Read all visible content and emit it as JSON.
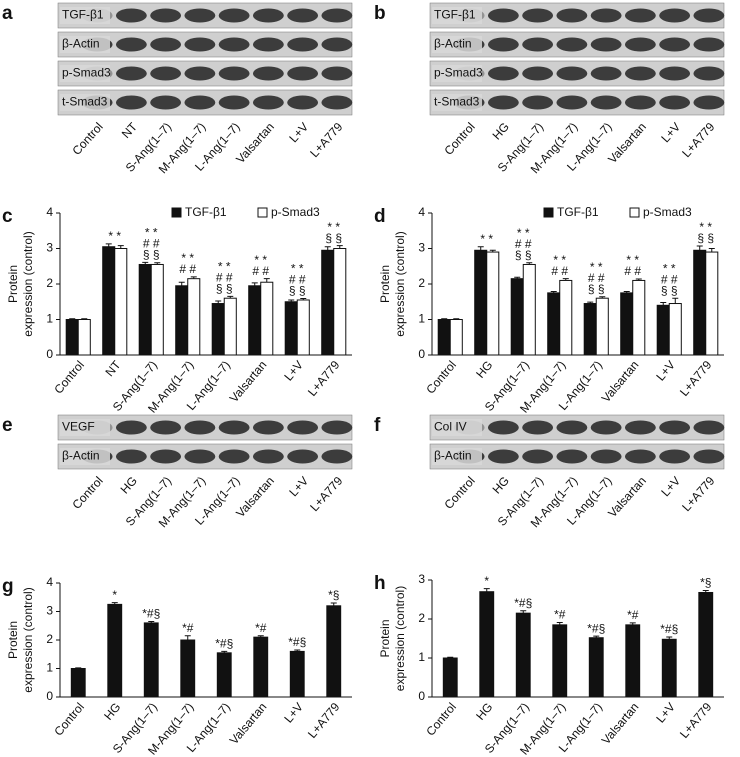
{
  "blots": [
    {
      "letter": "a",
      "rows": [
        "TGF-β1",
        "β-Actin",
        "p-Smad3",
        "t-Smad3"
      ],
      "lanes": [
        "Control",
        "NT",
        "S-Ang(1–7)",
        "M-Ang(1–7)",
        "L-Ang(1–7)",
        "Valsartan",
        "L+V",
        "L+A779"
      ]
    },
    {
      "letter": "b",
      "rows": [
        "TGF-β1",
        "β-Actin",
        "p-Smad3",
        "t-Smad3"
      ],
      "lanes": [
        "Control",
        "HG",
        "S-Ang(1–7)",
        "M-Ang(1–7)",
        "L-Ang(1–7)",
        "Valsartan",
        "L+V",
        "L+A779"
      ]
    },
    {
      "letter": "e",
      "rows": [
        "VEGF",
        "β-Actin"
      ],
      "lanes": [
        "Control",
        "HG",
        "S-Ang(1–7)",
        "M-Ang(1–7)",
        "L-Ang(1–7)",
        "Valsartan",
        "L+V",
        "L+A779"
      ]
    },
    {
      "letter": "f",
      "rows": [
        "Col IV",
        "β-Actin"
      ],
      "lanes": [
        "Control",
        "HG",
        "S-Ang(1–7)",
        "M-Ang(1–7)",
        "L-Ang(1–7)",
        "Valsartan",
        "L+V",
        "L+A779"
      ]
    }
  ],
  "chart_data": [
    {
      "type": "bar",
      "letter": "c",
      "y_label": [
        "Protein",
        "expression (control)"
      ],
      "categories": [
        "Control",
        "NT",
        "S-Ang(1–7)",
        "M-Ang(1–7)",
        "L-Ang(1–7)",
        "Valsartan",
        "L+V",
        "L+A779"
      ],
      "series": [
        {
          "name": "TGF-β1",
          "color": "#111111",
          "values": [
            1,
            3.05,
            2.55,
            1.95,
            1.45,
            1.95,
            1.5,
            2.95
          ],
          "errors": [
            0.02,
            0.08,
            0.06,
            0.1,
            0.07,
            0.08,
            0.05,
            0.1
          ]
        },
        {
          "name": "p-Smad3",
          "color": "#ffffff",
          "values": [
            1,
            3.0,
            2.55,
            2.15,
            1.6,
            2.05,
            1.55,
            3.0
          ],
          "errors": [
            0.02,
            0.08,
            0.05,
            0.05,
            0.05,
            0.1,
            0.04,
            0.08
          ]
        }
      ],
      "annotations": [
        [],
        [
          "* *"
        ],
        [
          "* *",
          "# #",
          "§ §"
        ],
        [
          "* *",
          "# #"
        ],
        [
          "* *",
          "# #",
          "§ §"
        ],
        [
          "* *",
          "# #"
        ],
        [
          "* *",
          "# #",
          "§ §"
        ],
        [
          "* *",
          "§ §"
        ]
      ],
      "ylim": [
        0,
        4
      ],
      "yticks": [
        0,
        1,
        2,
        3,
        4
      ],
      "legend": "top-right"
    },
    {
      "type": "bar",
      "letter": "d",
      "y_label": [
        "Protein",
        "expression (control)"
      ],
      "categories": [
        "Control",
        "HG",
        "S-Ang(1–7)",
        "M-Ang(1–7)",
        "L-Ang(1–7)",
        "Valsartan",
        "L+V",
        "L+A779"
      ],
      "series": [
        {
          "name": "TGF-β1",
          "color": "#111111",
          "values": [
            1,
            2.95,
            2.15,
            1.75,
            1.45,
            1.75,
            1.4,
            2.95
          ],
          "errors": [
            0.02,
            0.1,
            0.04,
            0.04,
            0.04,
            0.04,
            0.08,
            0.12
          ]
        },
        {
          "name": "p-Smad3",
          "color": "#ffffff",
          "values": [
            1,
            2.9,
            2.55,
            2.1,
            1.6,
            2.1,
            1.45,
            2.9
          ],
          "errors": [
            0.02,
            0.05,
            0.05,
            0.05,
            0.04,
            0.04,
            0.15,
            0.1
          ]
        }
      ],
      "annotations": [
        [],
        [
          "* *"
        ],
        [
          "* *",
          "# #",
          "§ §"
        ],
        [
          "* *",
          "# #"
        ],
        [
          "* *",
          "# #",
          "§ §"
        ],
        [
          "* *",
          "# #"
        ],
        [
          "* *",
          "# #",
          "§ §"
        ],
        [
          "* *",
          "§ §"
        ]
      ],
      "ylim": [
        0,
        4
      ],
      "yticks": [
        0,
        1,
        2,
        3,
        4
      ],
      "legend": "top-right"
    },
    {
      "type": "bar",
      "letter": "g",
      "y_label": [
        "Protein",
        "expression (control)"
      ],
      "categories": [
        "Control",
        "HG",
        "S-Ang(1–7)",
        "M-Ang(1–7)",
        "L-Ang(1–7)",
        "Valsartan",
        "L+V",
        "L+A779"
      ],
      "series": [
        {
          "color": "#111111",
          "values": [
            1,
            3.25,
            2.6,
            2.0,
            1.55,
            2.1,
            1.6,
            3.2
          ],
          "errors": [
            0.02,
            0.06,
            0.05,
            0.15,
            0.05,
            0.05,
            0.05,
            0.1
          ]
        }
      ],
      "annotations": [
        [],
        [
          "*"
        ],
        [
          "*#§"
        ],
        [
          "*#"
        ],
        [
          "*#§"
        ],
        [
          "*#"
        ],
        [
          "*#§"
        ],
        [
          "*§"
        ]
      ],
      "ylim": [
        0,
        4
      ],
      "yticks": [
        0,
        1,
        2,
        3,
        4
      ]
    },
    {
      "type": "bar",
      "letter": "h",
      "y_label": [
        "Protein",
        "expression (control)"
      ],
      "categories": [
        "Control",
        "HG",
        "S-Ang(1–7)",
        "M-Ang(1–7)",
        "L-Ang(1–7)",
        "Valsartan",
        "L+V",
        "L+A779"
      ],
      "series": [
        {
          "color": "#111111",
          "values": [
            1,
            2.7,
            2.15,
            1.85,
            1.52,
            1.85,
            1.48,
            2.68
          ],
          "errors": [
            0.02,
            0.08,
            0.06,
            0.06,
            0.04,
            0.05,
            0.06,
            0.05
          ]
        }
      ],
      "annotations": [
        [],
        [
          "*"
        ],
        [
          "*#§"
        ],
        [
          "*#"
        ],
        [
          "*#§"
        ],
        [
          "*#"
        ],
        [
          "*#§"
        ],
        [
          "*§"
        ]
      ],
      "ylim": [
        0,
        3
      ],
      "yticks": [
        0,
        1,
        2,
        3
      ]
    }
  ]
}
